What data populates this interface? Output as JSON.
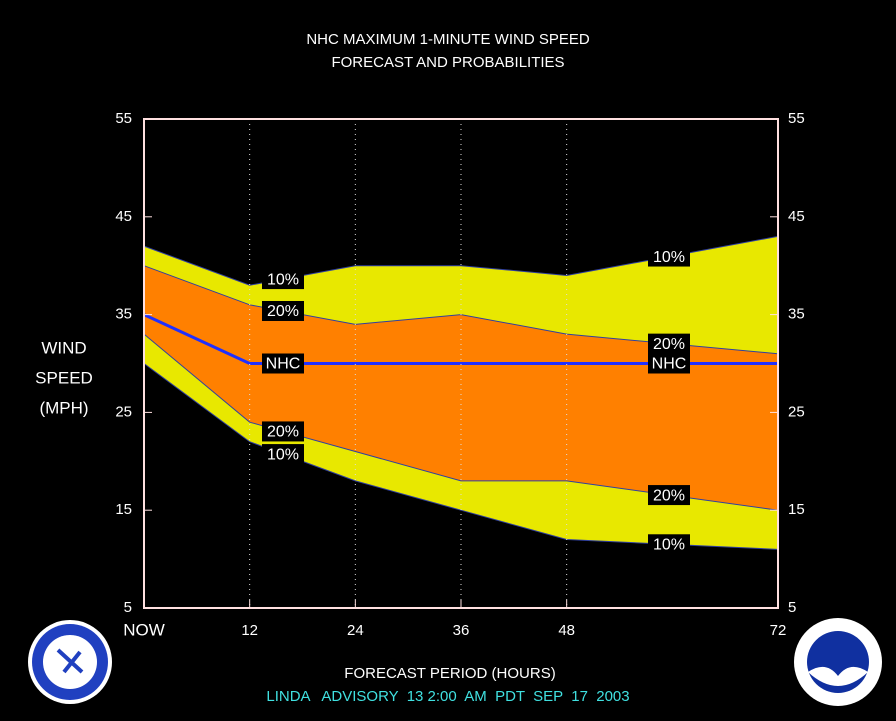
{
  "chart_data": {
    "type": "band",
    "title": [
      "NHC MAXIMUM 1-MINUTE WIND SPEED",
      "FORECAST AND PROBABILITIES"
    ],
    "ylabel": [
      "WIND",
      "SPEED",
      "(MPH)"
    ],
    "xlabel": "FORECAST PERIOD (HOURS)",
    "footer": "LINDA   ADVISORY  13 2:00  AM  PDT  SEP  17  2003",
    "x": [
      0,
      12,
      24,
      36,
      48,
      72
    ],
    "xlim": [
      0,
      72
    ],
    "xticks": [
      {
        "value": 0,
        "label": "NOW"
      },
      12,
      24,
      36,
      48,
      72
    ],
    "ylim": [
      5,
      55
    ],
    "yticks": [
      5,
      15,
      25,
      35,
      45,
      55
    ],
    "series": [
      {
        "name": "10%",
        "color": "#e8e800",
        "values": [
          42,
          38,
          40,
          40,
          39,
          43
        ]
      },
      {
        "name": "20%",
        "color": "#ff8000",
        "values": [
          40,
          36,
          34,
          35,
          33,
          31
        ]
      },
      {
        "name": "NHC",
        "color": "#2030ff",
        "values": [
          35,
          30,
          30,
          30,
          30,
          30
        ]
      },
      {
        "name": "20%",
        "color": "#ff8000",
        "values": [
          33,
          24,
          21,
          18,
          18,
          15
        ]
      },
      {
        "name": "10%",
        "color": "#e8e800",
        "values": [
          30,
          22,
          18,
          15,
          12,
          11
        ]
      }
    ]
  }
}
